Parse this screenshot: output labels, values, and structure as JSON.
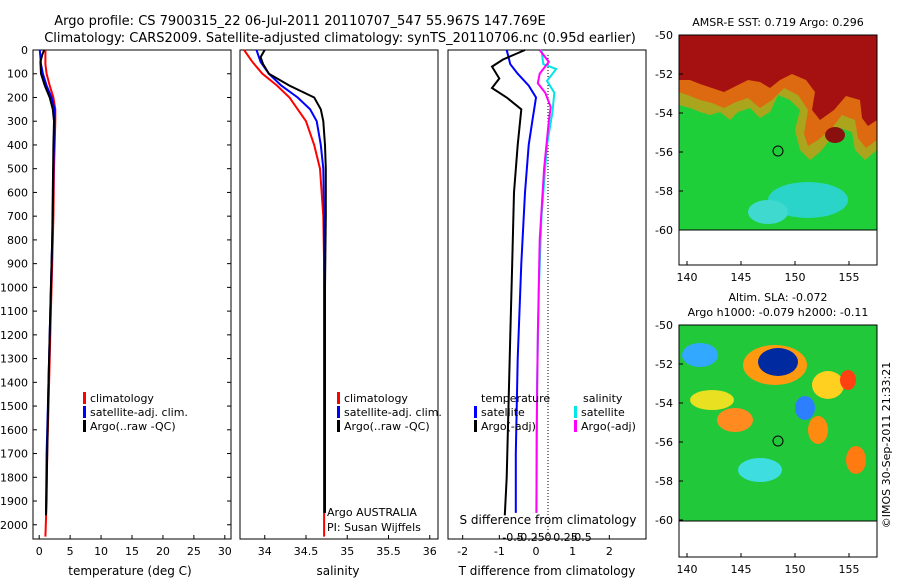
{
  "header": {
    "title_line1": "Argo profile: CS 7900315_22 06-Jul-2011 20110707_547 55.967S 147.769E",
    "title_line2": "Climatology: CARS2009. Satellite-adjusted climatology: synTS_20110706.nc (0.95d earlier)"
  },
  "colors": {
    "climatology": "#ff0000",
    "satellite": "#0000ff",
    "argo": "#000000",
    "sal_satellite": "#00e5e5",
    "sal_argo": "#ff00ff"
  },
  "chart_data": [
    {
      "id": "temperature",
      "type": "line",
      "xlabel": "temperature (deg C)",
      "ylabel": "",
      "xlim": [
        -1,
        31
      ],
      "ylim": [
        0,
        2060
      ],
      "xticks": [
        0,
        5,
        10,
        15,
        20,
        25,
        30
      ],
      "yticks": [
        0,
        100,
        200,
        300,
        400,
        500,
        600,
        700,
        800,
        900,
        1000,
        1100,
        1200,
        1300,
        1400,
        1500,
        1600,
        1700,
        1800,
        1900,
        2000
      ],
      "legend": [
        "climatology",
        "satellite-adj. clim.",
        "Argo(..raw -QC)"
      ],
      "series": [
        {
          "name": "climatology",
          "color": "#ff0000",
          "x": [
            1.0,
            1.0,
            1.2,
            1.7,
            2.3,
            2.6,
            2.6,
            2.5,
            2.4,
            2.3,
            2.1,
            1.9,
            1.7,
            1.5,
            1.3,
            1.2,
            1.0
          ],
          "y": [
            0,
            60,
            100,
            150,
            200,
            250,
            300,
            400,
            500,
            700,
            900,
            1100,
            1300,
            1500,
            1700,
            1900,
            2050
          ]
        },
        {
          "name": "satellite-adj. clim.",
          "color": "#0000ff",
          "x": [
            0.1,
            0.3,
            0.6,
            1.2,
            2.0,
            2.5,
            2.5,
            2.4,
            2.3,
            2.2,
            2.0,
            1.8,
            1.6,
            1.4,
            1.2,
            1.1
          ],
          "y": [
            0,
            60,
            100,
            150,
            200,
            250,
            300,
            400,
            500,
            700,
            900,
            1100,
            1300,
            1500,
            1700,
            1950
          ]
        },
        {
          "name": "Argo(..raw -QC)",
          "color": "#000000",
          "x": [
            0.8,
            0.5,
            0.2,
            0.3,
            0.9,
            1.7,
            2.2,
            2.4,
            2.3,
            2.2,
            2.1,
            1.9,
            1.7,
            1.5,
            1.3,
            1.1
          ],
          "y": [
            0,
            20,
            50,
            100,
            150,
            200,
            250,
            300,
            400,
            600,
            800,
            1000,
            1200,
            1400,
            1700,
            1960
          ]
        }
      ]
    },
    {
      "id": "salinity",
      "type": "line",
      "xlabel": "salinity",
      "xlim": [
        33.7,
        36.1
      ],
      "xticks": [
        34,
        34.5,
        35,
        35.5,
        36
      ],
      "legend": [
        "climatology",
        "satellite-adj. clim.",
        "Argo(..raw -QC)"
      ],
      "annotations": [
        "Argo AUSTRALIA",
        "PI: Susan Wijffels"
      ],
      "series": [
        {
          "name": "climatology",
          "color": "#ff0000",
          "x": [
            33.75,
            33.85,
            33.97,
            34.15,
            34.3,
            34.4,
            34.5,
            34.6,
            34.67,
            34.71,
            34.72,
            34.72,
            34.72,
            34.72
          ],
          "y": [
            0,
            50,
            100,
            150,
            200,
            250,
            300,
            400,
            500,
            700,
            900,
            1200,
            1600,
            2050
          ]
        },
        {
          "name": "satellite-adj. clim.",
          "color": "#0000ff",
          "x": [
            33.9,
            33.95,
            34.05,
            34.2,
            34.4,
            34.55,
            34.63,
            34.68,
            34.71,
            34.72,
            34.72,
            34.72,
            34.72
          ],
          "y": [
            0,
            50,
            100,
            150,
            200,
            250,
            300,
            400,
            500,
            700,
            1000,
            1400,
            1950
          ]
        },
        {
          "name": "Argo(..raw -QC)",
          "color": "#000000",
          "x": [
            34.0,
            33.95,
            33.98,
            34.05,
            34.3,
            34.6,
            34.68,
            34.71,
            34.73,
            34.74,
            34.74,
            34.73,
            34.73,
            34.73
          ],
          "y": [
            0,
            30,
            60,
            100,
            150,
            200,
            250,
            300,
            400,
            500,
            700,
            1000,
            1500,
            1950
          ]
        }
      ]
    },
    {
      "id": "difference",
      "type": "line",
      "xlabel": "T difference from climatology",
      "xlabel_top": "S difference from climatology",
      "xlim": [
        -2.4,
        3.0
      ],
      "xticks": [
        -2,
        -1,
        0,
        1,
        2
      ],
      "xtick_labels": [
        "-2",
        "-1",
        "0",
        "1",
        "2"
      ],
      "sticks": [
        -0.5,
        -0.25,
        0,
        0.25,
        0.5
      ],
      "stick_labels": [
        "-0.5",
        "-0.25",
        "0",
        "0.25",
        "0.5"
      ],
      "legend_title_left": "temperature",
      "legend_title_right": "salinity",
      "legend_left": [
        "satellite",
        "Argo(-adj)"
      ],
      "legend_right": [
        "satellite",
        "Argo(-adj)"
      ],
      "series": [
        {
          "name": "T satellite",
          "color": "#0000ff",
          "x": [
            -0.8,
            -0.7,
            -0.5,
            -0.2,
            0.0,
            -0.1,
            -0.2,
            -0.3,
            -0.4,
            -0.5,
            -0.55,
            -0.55
          ],
          "y": [
            0,
            60,
            100,
            150,
            200,
            300,
            400,
            600,
            900,
            1300,
            1700,
            1950
          ]
        },
        {
          "name": "T Argo(-adj)",
          "color": "#000000",
          "x": [
            -0.3,
            -0.9,
            -1.2,
            -1.0,
            -1.2,
            -0.8,
            -0.4,
            -0.5,
            -0.6,
            -0.65,
            -0.7,
            -0.75,
            -0.8,
            -0.85
          ],
          "y": [
            0,
            40,
            70,
            120,
            160,
            200,
            250,
            400,
            600,
            900,
            1200,
            1500,
            1800,
            1960
          ]
        },
        {
          "name": "S satellite",
          "color": "#00e5e5",
          "x": [
            0.15,
            0.2,
            0.55,
            0.3,
            0.5,
            0.45,
            0.3,
            0.15,
            0.08,
            0.03,
            0.02,
            0.01
          ],
          "y": [
            0,
            60,
            80,
            130,
            180,
            260,
            400,
            700,
            1000,
            1400,
            1700,
            1950
          ]
        },
        {
          "name": "S Argo(-adj)",
          "color": "#ff00ff",
          "x": [
            0.1,
            0.35,
            0.1,
            0.05,
            0.25,
            0.4,
            0.35,
            0.22,
            0.1,
            0.05,
            0.02,
            0.01
          ],
          "y": [
            0,
            50,
            100,
            140,
            180,
            240,
            300,
            500,
            800,
            1200,
            1600,
            1950
          ]
        }
      ]
    }
  ],
  "maps": [
    {
      "id": "sst",
      "title": "AMSR-E SST: 0.719 Argo: 0.296",
      "xticks": [
        "140",
        "145",
        "150",
        "155"
      ],
      "yticks": [
        "-50",
        "-52",
        "-54",
        "-56",
        "-58",
        "-60"
      ]
    },
    {
      "id": "sla",
      "title_line1": "Altim. SLA: -0.072",
      "title_line2": "Argo h1000: -0.079 h2000: -0.11",
      "xticks": [
        "140",
        "145",
        "150",
        "155"
      ],
      "yticks": [
        "-50",
        "-52",
        "-54",
        "-56",
        "-58",
        "-60"
      ]
    }
  ],
  "side_label": "©IMOS 30-Sep-2011 21:33:21"
}
